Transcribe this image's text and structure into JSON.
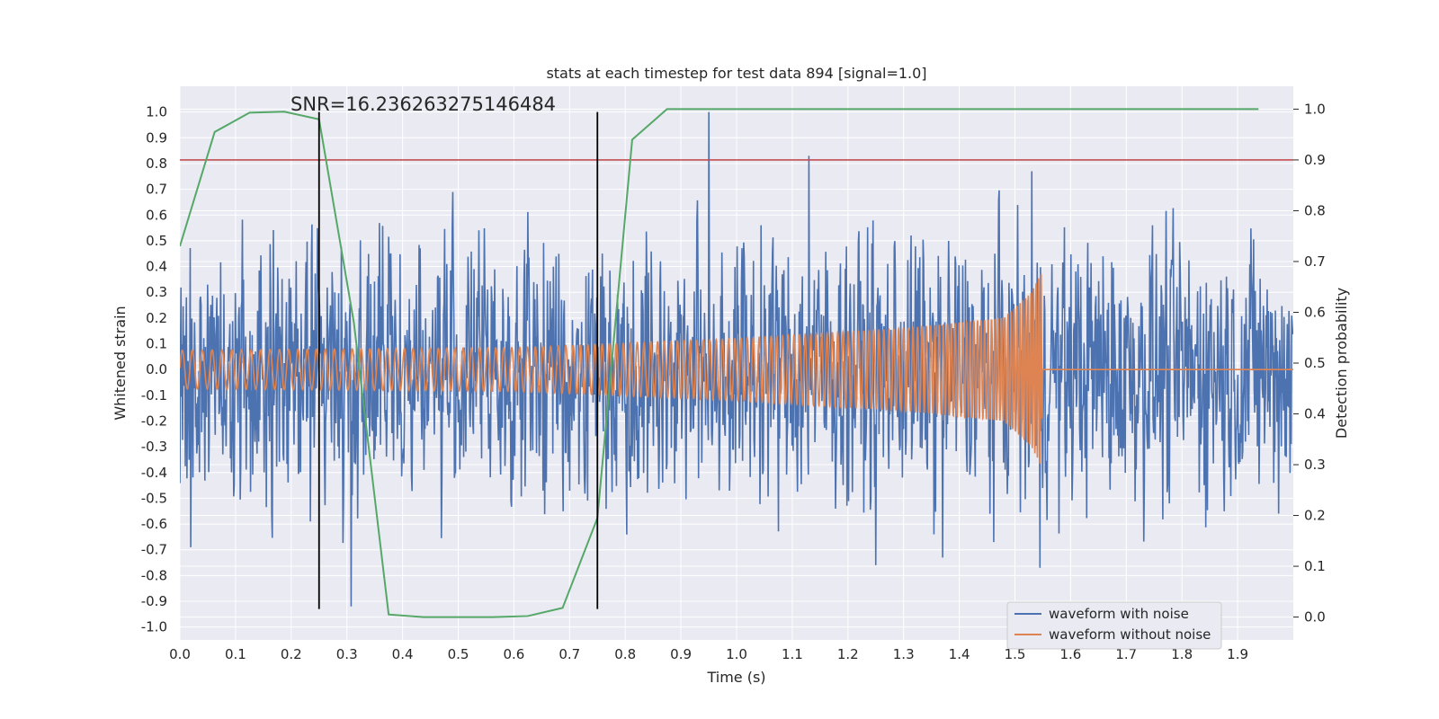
{
  "chart_data": {
    "type": "line",
    "title": "stats at each timestep for test data 894 [signal=1.0]",
    "xlabel": "Time (s)",
    "ylabel": "Whitened strain",
    "ylabel_right": "Detection probability",
    "xlim": [
      0.0,
      2.0
    ],
    "ylim": [
      -1.05,
      1.1
    ],
    "ylim_right": [
      -0.045,
      1.045
    ],
    "x_ticks": [
      "0.0",
      "0.1",
      "0.2",
      "0.3",
      "0.4",
      "0.5",
      "0.6",
      "0.7",
      "0.8",
      "0.9",
      "1.0",
      "1.1",
      "1.2",
      "1.3",
      "1.4",
      "1.5",
      "1.6",
      "1.7",
      "1.8",
      "1.9"
    ],
    "y_ticks": [
      "1.0",
      "0.9",
      "0.8",
      "0.7",
      "0.6",
      "0.5",
      "0.4",
      "0.3",
      "0.2",
      "0.1",
      "0.0",
      "-0.1",
      "-0.2",
      "-0.3",
      "-0.4",
      "-0.5",
      "-0.6",
      "-0.7",
      "-0.8",
      "-0.9",
      "-1.0"
    ],
    "y_ticks_right": [
      "1.0",
      "0.9",
      "0.8",
      "0.7",
      "0.6",
      "0.5",
      "0.4",
      "0.3",
      "0.2",
      "0.1",
      "0.0"
    ],
    "grid": true,
    "legend_position": "lower-right",
    "annotation": "SNR=16.236263275146484",
    "series": [
      {
        "name": "waveform with noise",
        "color": "#4c72b0",
        "kind": "noise",
        "x_range": [
          0.0,
          2.0
        ],
        "amplitude": 0.3,
        "peaks": [
          [
            0.95,
            1.0
          ],
          [
            1.13,
            0.83
          ],
          [
            1.25,
            0.83
          ],
          [
            1.53,
            0.77
          ],
          [
            0.308,
            -0.92
          ],
          [
            1.545,
            -0.77
          ],
          [
            0.02,
            -0.69
          ],
          [
            1.25,
            -0.76
          ],
          [
            1.37,
            -0.73
          ]
        ]
      },
      {
        "name": "waveform without noise",
        "color": "#dd8452",
        "kind": "chirp",
        "x_range": [
          0.0,
          1.55
        ],
        "amplitude": [
          [
            0.0,
            0.075
          ],
          [
            0.6,
            0.085
          ],
          [
            1.0,
            0.12
          ],
          [
            1.3,
            0.16
          ],
          [
            1.48,
            0.2
          ],
          [
            1.53,
            0.3
          ],
          [
            1.548,
            0.38
          ],
          [
            1.55,
            0.0
          ]
        ],
        "frequency": [
          [
            0.0,
            55
          ],
          [
            0.6,
            70
          ],
          [
            1.0,
            90
          ],
          [
            1.3,
            115
          ],
          [
            1.48,
            170
          ],
          [
            1.55,
            230
          ]
        ]
      },
      {
        "color": "#55a868",
        "axis": "right",
        "x": [
          0.0,
          0.0625,
          0.125,
          0.1875,
          0.25,
          0.3125,
          0.375,
          0.4375,
          0.5,
          0.5625,
          0.625,
          0.6875,
          0.75,
          0.8125,
          0.875,
          0.9375,
          1.0,
          1.9375
        ],
        "y": [
          0.73,
          0.955,
          0.993,
          0.995,
          0.98,
          0.58,
          0.005,
          0.0,
          0.0,
          0.0,
          0.002,
          0.018,
          0.195,
          0.94,
          1.0,
          1.0,
          1.0,
          1.0
        ]
      }
    ],
    "hlines": [
      {
        "y_right": 0.9,
        "color": "#c44e52"
      }
    ],
    "vlines": [
      {
        "x": 0.25,
        "color": "#000000",
        "ymin": -0.93,
        "ymax": 1.0
      },
      {
        "x": 0.75,
        "color": "#000000",
        "ymin": -0.93,
        "ymax": 1.0
      }
    ],
    "colors": {
      "background": "#eaeaf2",
      "grid": "#ffffff"
    }
  }
}
